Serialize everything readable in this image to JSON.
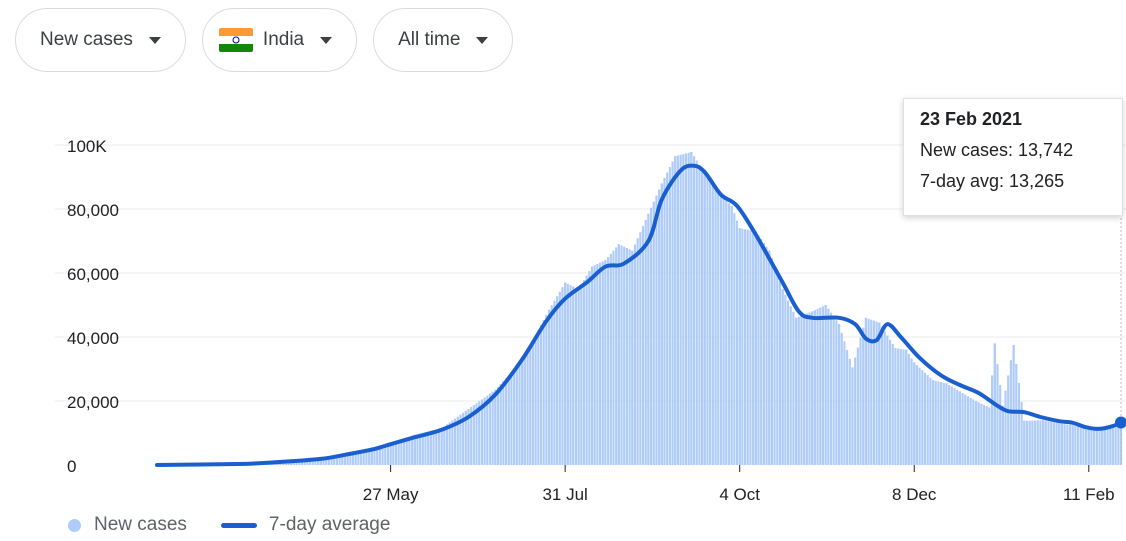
{
  "filters": {
    "metric": "New cases",
    "country": "India",
    "range": "All time"
  },
  "tooltip": {
    "date": "23 Feb 2021",
    "new_cases_label": "New cases: 13,742",
    "avg_label": "7-day avg: 13,265"
  },
  "colors": {
    "bars": "#aecbfa",
    "avg_line": "#1a5fd0",
    "grid": "#ebebeb"
  },
  "chart_data": {
    "type": "bar",
    "x_start": "2020-03-01",
    "x_end": "2021-02-23",
    "ylim": [
      0,
      100000
    ],
    "yticks": [
      0,
      20000,
      40000,
      60000,
      80000,
      100000
    ],
    "ytick_labels": [
      "0",
      "20,000",
      "40,000",
      "60,000",
      "80,000",
      "100K"
    ],
    "xticks": [
      "2020-05-27",
      "2020-07-31",
      "2020-10-04",
      "2020-12-08",
      "2021-02-11"
    ],
    "xtick_labels": [
      "27 May",
      "31 Jul",
      "4 Oct",
      "8 Dec",
      "11 Feb"
    ],
    "grid": true,
    "legend_position": "bottom-left",
    "series": [
      {
        "name": "New cases",
        "type": "bar",
        "points": [
          [
            "2020-03-01",
            0
          ],
          [
            "2020-03-15",
            20
          ],
          [
            "2020-03-31",
            200
          ],
          [
            "2020-04-10",
            700
          ],
          [
            "2020-04-20",
            1300
          ],
          [
            "2020-05-01",
            1900
          ],
          [
            "2020-05-10",
            3300
          ],
          [
            "2020-05-20",
            5500
          ],
          [
            "2020-05-27",
            6500
          ],
          [
            "2020-06-05",
            9500
          ],
          [
            "2020-06-15",
            11500
          ],
          [
            "2020-06-25",
            17500
          ],
          [
            "2020-07-05",
            23500
          ],
          [
            "2020-07-15",
            32500
          ],
          [
            "2020-07-25",
            48500
          ],
          [
            "2020-07-31",
            57000
          ],
          [
            "2020-08-05",
            55000
          ],
          [
            "2020-08-10",
            62000
          ],
          [
            "2020-08-15",
            64000
          ],
          [
            "2020-08-20",
            69000
          ],
          [
            "2020-08-25",
            67000
          ],
          [
            "2020-08-31",
            78500
          ],
          [
            "2020-09-05",
            88000
          ],
          [
            "2020-09-10",
            96500
          ],
          [
            "2020-09-16",
            97800
          ],
          [
            "2020-09-20",
            92500
          ],
          [
            "2020-09-25",
            86000
          ],
          [
            "2020-10-01",
            81000
          ],
          [
            "2020-10-04",
            74000
          ],
          [
            "2020-10-10",
            73000
          ],
          [
            "2020-10-15",
            67000
          ],
          [
            "2020-10-20",
            55000
          ],
          [
            "2020-10-25",
            46000
          ],
          [
            "2020-10-31",
            48000
          ],
          [
            "2020-11-05",
            50000
          ],
          [
            "2020-11-10",
            44000
          ],
          [
            "2020-11-15",
            30500
          ],
          [
            "2020-11-20",
            46000
          ],
          [
            "2020-11-25",
            44500
          ],
          [
            "2020-12-01",
            36500
          ],
          [
            "2020-12-05",
            36000
          ],
          [
            "2020-12-08",
            32000
          ],
          [
            "2020-12-15",
            26500
          ],
          [
            "2020-12-20",
            25500
          ],
          [
            "2020-12-25",
            23000
          ],
          [
            "2020-12-31",
            20000
          ],
          [
            "2021-01-05",
            18000
          ],
          [
            "2021-01-07",
            38000
          ],
          [
            "2021-01-10",
            18500
          ],
          [
            "2021-01-14",
            37500
          ],
          [
            "2021-01-18",
            13800
          ],
          [
            "2021-01-25",
            14000
          ],
          [
            "2021-01-31",
            13000
          ],
          [
            "2021-02-05",
            12400
          ],
          [
            "2021-02-11",
            11200
          ],
          [
            "2021-02-16",
            11600
          ],
          [
            "2021-02-20",
            12000
          ],
          [
            "2021-02-23",
            13742
          ]
        ]
      },
      {
        "name": "7-day average",
        "type": "line",
        "points": [
          [
            "2020-03-01",
            0
          ],
          [
            "2020-03-31",
            300
          ],
          [
            "2020-04-15",
            900
          ],
          [
            "2020-05-01",
            1900
          ],
          [
            "2020-05-10",
            3200
          ],
          [
            "2020-05-20",
            4800
          ],
          [
            "2020-05-27",
            6500
          ],
          [
            "2020-06-05",
            8700
          ],
          [
            "2020-06-15",
            11000
          ],
          [
            "2020-06-25",
            15000
          ],
          [
            "2020-07-05",
            22000
          ],
          [
            "2020-07-15",
            33000
          ],
          [
            "2020-07-24",
            45000
          ],
          [
            "2020-07-31",
            52000
          ],
          [
            "2020-08-08",
            57000
          ],
          [
            "2020-08-15",
            62000
          ],
          [
            "2020-08-22",
            63000
          ],
          [
            "2020-08-31",
            70000
          ],
          [
            "2020-09-05",
            83000
          ],
          [
            "2020-09-12",
            92000
          ],
          [
            "2020-09-17",
            93500
          ],
          [
            "2020-09-21",
            91500
          ],
          [
            "2020-09-27",
            84500
          ],
          [
            "2020-10-03",
            81000
          ],
          [
            "2020-10-10",
            72000
          ],
          [
            "2020-10-20",
            57000
          ],
          [
            "2020-10-26",
            48000
          ],
          [
            "2020-10-31",
            46000
          ],
          [
            "2020-11-10",
            46000
          ],
          [
            "2020-11-16",
            44000
          ],
          [
            "2020-11-20",
            39500
          ],
          [
            "2020-11-24",
            39000
          ],
          [
            "2020-11-28",
            44000
          ],
          [
            "2020-12-03",
            40000
          ],
          [
            "2020-12-10",
            33500
          ],
          [
            "2020-12-18",
            28000
          ],
          [
            "2020-12-25",
            25000
          ],
          [
            "2021-01-01",
            22500
          ],
          [
            "2021-01-08",
            18500
          ],
          [
            "2021-01-12",
            16800
          ],
          [
            "2021-01-18",
            16500
          ],
          [
            "2021-01-24",
            15000
          ],
          [
            "2021-01-31",
            13700
          ],
          [
            "2021-02-05",
            13200
          ],
          [
            "2021-02-10",
            11800
          ],
          [
            "2021-02-15",
            11300
          ],
          [
            "2021-02-20",
            12200
          ],
          [
            "2021-02-23",
            13265
          ]
        ]
      }
    ]
  }
}
